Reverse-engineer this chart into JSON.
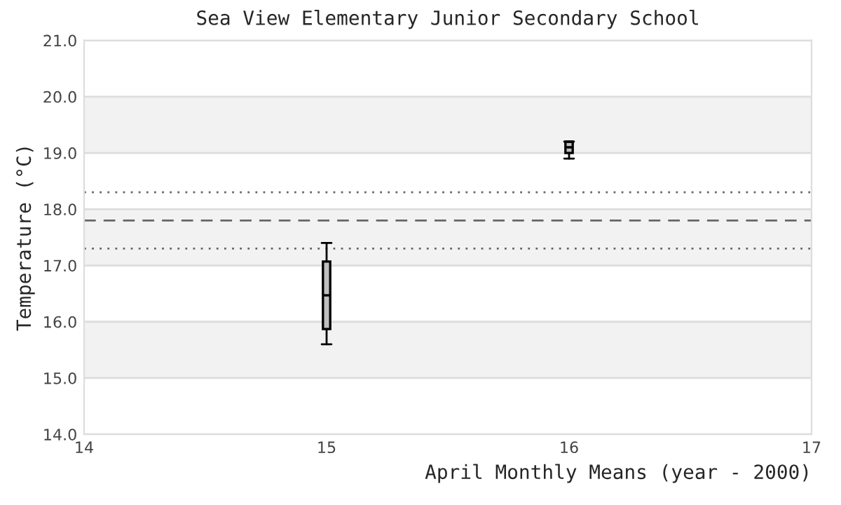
{
  "chart_data": {
    "type": "box",
    "title": "Sea View Elementary Junior Secondary School",
    "xlabel": "April Monthly Means (year - 2000)",
    "ylabel": "Temperature (°C)",
    "x": [
      15,
      16
    ],
    "boxes": [
      {
        "low": 15.6,
        "q1": 15.87,
        "median": 16.47,
        "q3": 17.07,
        "high": 17.4
      },
      {
        "low": 18.9,
        "q1": 19.0,
        "median": 19.1,
        "q3": 19.2,
        "high": 19.2
      }
    ],
    "color": "#bfbfbf",
    "xlim": [
      14,
      17
    ],
    "xticks": [
      14,
      15,
      16,
      17
    ],
    "ylim": [
      14,
      21
    ],
    "yticks": [
      {
        "value": 14,
        "label": "14.0"
      },
      {
        "value": 15,
        "label": "15.0"
      },
      {
        "value": 16,
        "label": "16.0"
      },
      {
        "value": 17,
        "label": "17.0"
      },
      {
        "value": 18,
        "label": "18.0"
      },
      {
        "value": 19,
        "label": "19.0"
      },
      {
        "value": 20,
        "label": "20.0"
      },
      {
        "value": 21,
        "label": "21.0"
      }
    ],
    "grid": "y",
    "bands": [
      {
        "axis": "y",
        "from": 15,
        "to": 16,
        "color": "#f2f2f2"
      },
      {
        "axis": "y",
        "from": 17,
        "to": 18,
        "color": "#f2f2f2"
      },
      {
        "axis": "y",
        "from": 19,
        "to": 20,
        "color": "#f2f2f2"
      }
    ],
    "ref_lines": [
      {
        "axis": "y",
        "value": 17.8,
        "color": "#666666",
        "line_style": "dashed"
      },
      {
        "axis": "y",
        "value": 18.3,
        "color": "#666666",
        "line_style": "dotted"
      },
      {
        "axis": "y",
        "value": 17.3,
        "color": "#666666",
        "line_style": "dotted"
      }
    ]
  }
}
